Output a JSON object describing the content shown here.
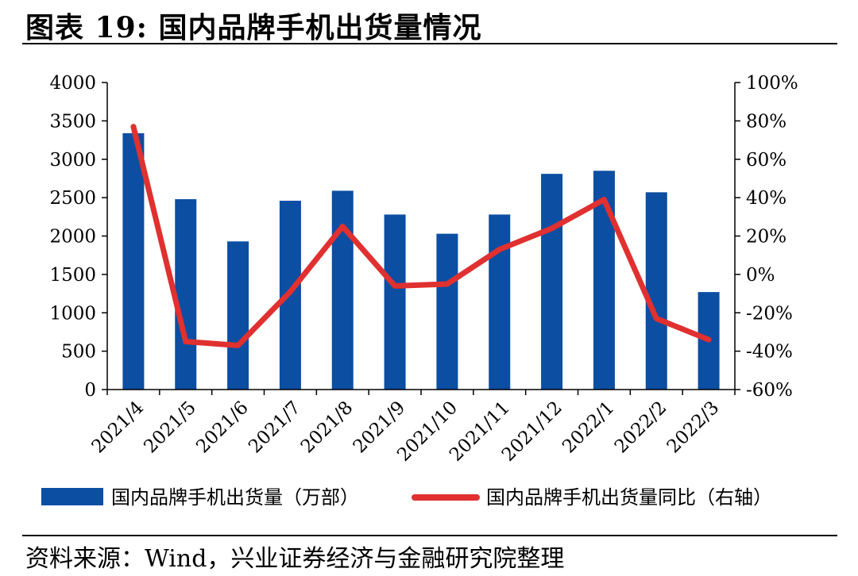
{
  "title": "图表 19:  国内品牌手机出货量情况",
  "source": "资料来源：Wind，兴业证券经济与金融研究院整理",
  "colors": {
    "bar": "#0b4ea2",
    "line": "#e03030",
    "axis": "#000000"
  },
  "chart_data": {
    "type": "bar+line",
    "categories": [
      "2021/4",
      "2021/5",
      "2021/6",
      "2021/7",
      "2021/8",
      "2021/9",
      "2021/10",
      "2021/11",
      "2021/12",
      "2022/1",
      "2022/2",
      "2022/3"
    ],
    "y_left": {
      "min": 0,
      "max": 4000,
      "step": 500,
      "tick_labels": [
        "0",
        "500",
        "1000",
        "1500",
        "2000",
        "2500",
        "3000",
        "3500",
        "4000"
      ]
    },
    "y_right": {
      "min": -60,
      "max": 100,
      "step": 20,
      "tick_labels": [
        "-60%",
        "-40%",
        "-20%",
        "0%",
        "20%",
        "40%",
        "60%",
        "80%",
        "100%"
      ]
    },
    "series": [
      {
        "name": "国内品牌手机出货量（万部）",
        "type": "bar",
        "axis": "left",
        "values": [
          3340,
          2480,
          1930,
          2460,
          2590,
          2280,
          2030,
          2280,
          2810,
          2850,
          2570,
          1270
        ]
      },
      {
        "name": "国内品牌手机出货量同比（右轴）",
        "type": "line",
        "axis": "right",
        "values": [
          77,
          -35,
          -37,
          -9,
          25,
          -6,
          -5,
          13,
          24,
          39,
          -23,
          -34
        ]
      }
    ],
    "legend_position": "bottom",
    "grid": false
  }
}
